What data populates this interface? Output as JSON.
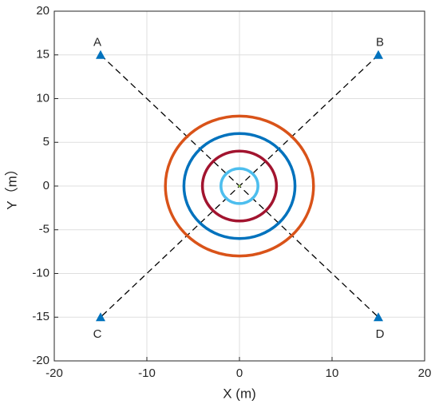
{
  "chart_data": {
    "type": "scatter",
    "xlabel": "X (m)",
    "ylabel": "Y（m）",
    "xlim": [
      -20,
      20
    ],
    "ylim": [
      -20,
      20
    ],
    "xticks": [
      -20,
      -10,
      0,
      10,
      20
    ],
    "yticks": [
      -20,
      -15,
      -10,
      -5,
      0,
      5,
      10,
      15,
      20
    ],
    "grid": true,
    "anchors": {
      "names": [
        "A",
        "B",
        "C",
        "D"
      ],
      "x": [
        -15,
        15,
        -15,
        15
      ],
      "y": [
        15,
        15,
        -15,
        -15
      ],
      "color": "#0072BD"
    },
    "center": {
      "x": 0,
      "y": 0,
      "color": "#77AC30"
    },
    "circles": [
      {
        "radius": 2,
        "color": "#4DBEEE"
      },
      {
        "radius": 4,
        "color": "#A2142F"
      },
      {
        "radius": 6,
        "color": "#0072BD"
      },
      {
        "radius": 8,
        "color": "#D95319"
      }
    ]
  }
}
